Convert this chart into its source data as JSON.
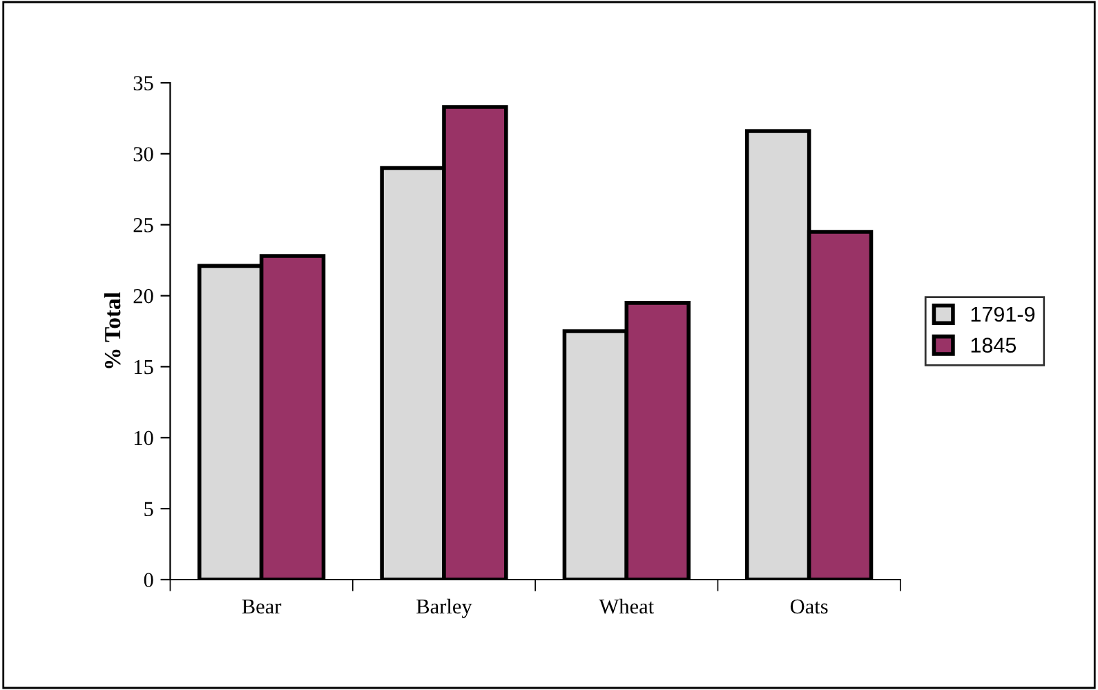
{
  "chart_data": {
    "type": "bar",
    "ylabel": "% Total",
    "categories": [
      "Bear",
      "Barley",
      "Wheat",
      "Oats"
    ],
    "series": [
      {
        "name": "1791-9",
        "color": "#d9d9d9",
        "values": [
          22.1,
          29.0,
          17.5,
          31.6
        ]
      },
      {
        "name": "1845",
        "color": "#993366",
        "values": [
          22.8,
          33.3,
          19.5,
          24.5
        ]
      }
    ],
    "ylim": [
      0,
      35
    ],
    "yticks": [
      0,
      5,
      10,
      15,
      20,
      25,
      30,
      35
    ],
    "grid": false,
    "legend": "right"
  }
}
